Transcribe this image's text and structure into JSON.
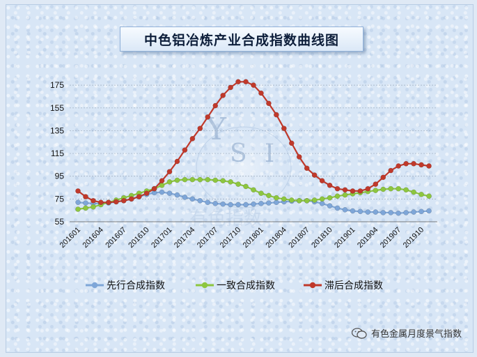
{
  "title": "中色铝冶炼产业合成指数曲线图",
  "watermark_text": "有色金属月度景气指数",
  "logo_text": "YSI 有色指数",
  "chart_data": {
    "type": "line",
    "title": "中色铝冶炼产业合成指数曲线图",
    "xlabel": "",
    "ylabel": "",
    "ylim": [
      55,
      180
    ],
    "yticks": [
      55,
      75,
      95,
      115,
      135,
      155,
      175
    ],
    "grid": true,
    "legend_position": "bottom",
    "tick_labels": [
      "201601",
      "201604",
      "201607",
      "201610",
      "201701",
      "201704",
      "201707",
      "201710",
      "201801",
      "201804",
      "201807",
      "201810",
      "201901",
      "201904",
      "201907",
      "201910"
    ],
    "x": [
      "201601",
      "201602",
      "201603",
      "201604",
      "201605",
      "201606",
      "201607",
      "201608",
      "201609",
      "201610",
      "201611",
      "201612",
      "201701",
      "201702",
      "201703",
      "201704",
      "201705",
      "201706",
      "201707",
      "201708",
      "201709",
      "201710",
      "201711",
      "201712",
      "201801",
      "201802",
      "201803",
      "201804",
      "201805",
      "201806",
      "201807",
      "201808",
      "201809",
      "201810",
      "201811",
      "201812",
      "201901",
      "201902",
      "201903",
      "201904",
      "201905",
      "201906",
      "201907",
      "201908",
      "201909",
      "201910",
      "201911"
    ],
    "series": [
      {
        "name": "先行合成指数",
        "color": "#7ea6d8",
        "values": [
          72,
          71.5,
          71,
          71,
          71.5,
          72.5,
          73.5,
          75,
          77,
          79,
          80.5,
          81,
          80,
          78.5,
          76.5,
          75,
          73.5,
          72,
          71,
          70.5,
          70,
          70,
          70,
          70.5,
          71,
          71.5,
          72,
          72.5,
          73,
          73.5,
          73.5,
          72.5,
          71,
          69,
          67,
          65.5,
          64.5,
          64,
          63.5,
          63.5,
          63,
          63,
          62.5,
          63,
          63.5,
          64,
          64.5
        ]
      },
      {
        "name": "一致合成指数",
        "color": "#8dc63f",
        "values": [
          66,
          67,
          68,
          70,
          72,
          74,
          76,
          78,
          80,
          82,
          84,
          87,
          90,
          91.5,
          92,
          92,
          92,
          92,
          91.5,
          91,
          90,
          88,
          86,
          83,
          80,
          78,
          76,
          75,
          74,
          73.5,
          73.5,
          74,
          75,
          76,
          77.5,
          78.5,
          79.5,
          80.5,
          81.5,
          82.5,
          83.5,
          84,
          84,
          83,
          81,
          79,
          77.5
        ]
      },
      {
        "name": "滞后合成指数",
        "color": "#c0392b",
        "values": [
          82,
          77,
          73.5,
          72,
          72,
          72.5,
          73.5,
          75,
          77,
          80,
          84,
          91,
          99,
          108,
          118,
          128,
          137,
          147,
          157,
          166,
          173,
          178,
          178,
          175,
          168,
          159,
          149,
          137,
          124,
          112,
          102,
          96,
          91,
          87,
          84,
          83,
          82,
          82,
          84,
          88,
          94,
          100,
          104,
          106,
          106,
          105,
          104
        ]
      }
    ]
  }
}
